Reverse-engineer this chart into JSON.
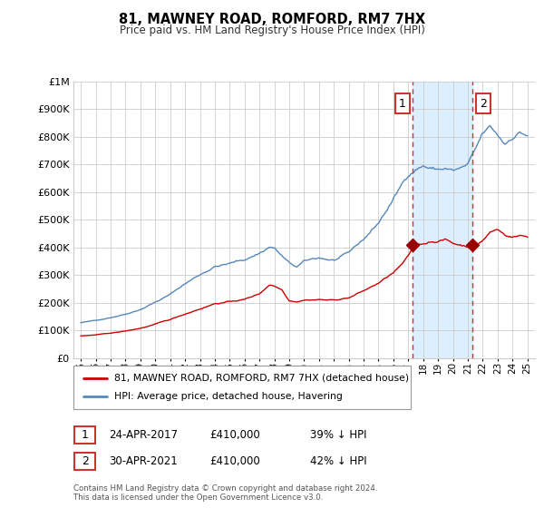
{
  "title": "81, MAWNEY ROAD, ROMFORD, RM7 7HX",
  "subtitle": "Price paid vs. HM Land Registry's House Price Index (HPI)",
  "footer": "Contains HM Land Registry data © Crown copyright and database right 2024.\nThis data is licensed under the Open Government Licence v3.0.",
  "legend_line1": "81, MAWNEY ROAD, ROMFORD, RM7 7HX (detached house)",
  "legend_line2": "HPI: Average price, detached house, Havering",
  "annotation1": {
    "num": "1",
    "date": "24-APR-2017",
    "price": "£410,000",
    "pct": "39% ↓ HPI"
  },
  "annotation2": {
    "num": "2",
    "date": "30-APR-2021",
    "price": "£410,000",
    "pct": "42% ↓ HPI"
  },
  "hpi_color": "#5588bb",
  "price_color": "#cc0000",
  "marker_color": "#990000",
  "vline_color": "#cc3333",
  "shaded_color": "#ddeeff",
  "background_color": "#ffffff",
  "grid_color": "#cccccc",
  "ylim": [
    0,
    1000000
  ],
  "yticks": [
    0,
    100000,
    200000,
    300000,
    400000,
    500000,
    600000,
    700000,
    800000,
    900000,
    1000000
  ],
  "ytick_labels": [
    "£0",
    "£100K",
    "£200K",
    "£300K",
    "£400K",
    "£500K",
    "£600K",
    "£700K",
    "£800K",
    "£900K",
    "£1M"
  ],
  "sale1_year": 2017.31,
  "sale1_price": 410000,
  "sale2_year": 2021.33,
  "sale2_price": 410000,
  "shade_start": 2017.31,
  "shade_end": 2021.33,
  "xmin": 1994.5,
  "xmax": 2025.5,
  "xtick_years": [
    1995,
    1996,
    1997,
    1998,
    1999,
    2000,
    2001,
    2002,
    2003,
    2004,
    2005,
    2006,
    2007,
    2008,
    2009,
    2010,
    2011,
    2012,
    2013,
    2014,
    2015,
    2016,
    2017,
    2018,
    2019,
    2020,
    2021,
    2022,
    2023,
    2024,
    2025
  ],
  "xtick_labels": [
    "95",
    "96",
    "97",
    "98",
    "99",
    "00",
    "01",
    "02",
    "03",
    "04",
    "05",
    "06",
    "07",
    "08",
    "09",
    "10",
    "11",
    "12",
    "13",
    "14",
    "15",
    "16",
    "17",
    "18",
    "19",
    "20",
    "21",
    "22",
    "23",
    "24",
    "25"
  ]
}
